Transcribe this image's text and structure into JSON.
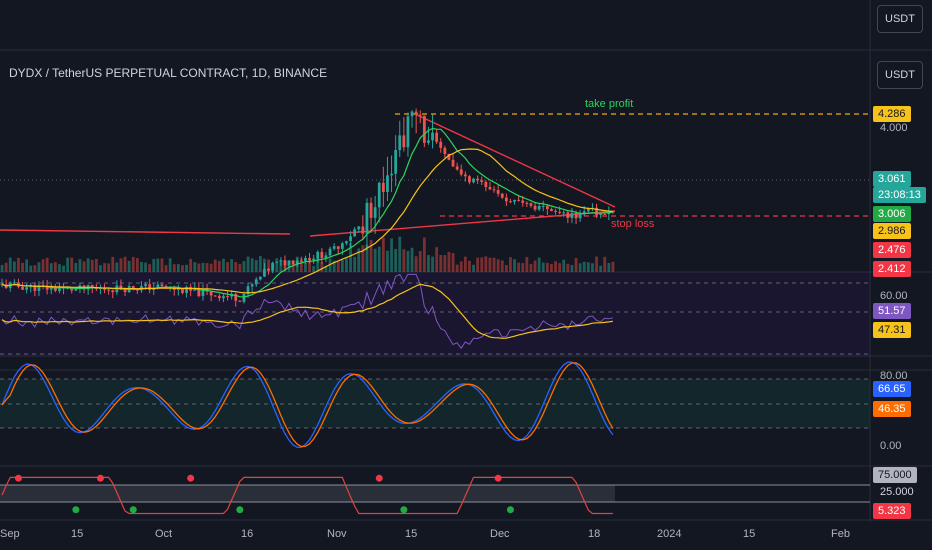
{
  "header": {
    "symbol_title": "DYDX / TetherUS PERPETUAL CONTRACT, 1D, BINANCE",
    "currency_button_top": "USDT",
    "currency_button_main": "USDT"
  },
  "annotations": {
    "take_profit": "take profit",
    "stop_loss": "stop loss"
  },
  "price_axis": {
    "tick_label": "4.000",
    "tags": {
      "take_profit_level": "4.286",
      "last_price": "3.061",
      "countdown": "23:08:13",
      "ma_fast": "3.006",
      "ma_slow": "2.986",
      "stop_loss_level": "2.476",
      "low_level": "2.412"
    }
  },
  "rsi_axis": {
    "tick_label": "60.00",
    "rsi_value": "51.57",
    "rsi_ma_value": "47.31"
  },
  "stoch_axis": {
    "tick_upper": "80.00",
    "tick_lower": "0.00",
    "k_value": "66.65",
    "d_value": "46.35"
  },
  "osc_axis": {
    "upper_level": "75.000",
    "lower_level": "25.000",
    "value": "5.323"
  },
  "time_axis": {
    "labels": [
      "Sep",
      "15",
      "Oct",
      "16",
      "Nov",
      "15",
      "Dec",
      "18",
      "2024",
      "15",
      "Feb"
    ]
  },
  "colors": {
    "background": "#131722",
    "up": "#26a69a",
    "down": "#ef5350",
    "ma_fast": "#2bd45a",
    "ma_slow": "#f7c21a",
    "trendline": "#f23645",
    "take_profit_line": "#f7a600",
    "rsi": "#7e57c2",
    "rsi_ma": "#f7c21a",
    "stoch_k": "#2962ff",
    "stoch_d": "#ff6d00"
  },
  "chart_data": {
    "type": "candlestick",
    "title": "DYDX / TetherUS PERPETUAL CONTRACT, 1D, BINANCE",
    "x_axis_labels": [
      "Sep",
      "15",
      "Oct",
      "16",
      "Nov",
      "15",
      "Dec",
      "18",
      "2024",
      "15",
      "Feb"
    ],
    "levels": {
      "take_profit": 4.286,
      "last": 3.061,
      "stop_loss": 2.476,
      "low": 2.412
    },
    "price_keypoints": [
      {
        "date": "Sep",
        "price": 2.2
      },
      {
        "date": "15",
        "price": 2.15
      },
      {
        "date": "Oct",
        "price": 2.18
      },
      {
        "date": "16",
        "price": 2.05
      },
      {
        "date": "Nov",
        "price": 2.6
      },
      {
        "date": "15",
        "price": 4.25
      },
      {
        "date": "Dec",
        "price": 3.15
      },
      {
        "date": "18",
        "price": 3.061
      }
    ],
    "indicators": {
      "rsi": {
        "value": 51.57,
        "ma": 47.31
      },
      "stochastic": {
        "k": 66.65,
        "d": 46.35
      },
      "oscillator": {
        "value": 5.323,
        "upper": 75.0,
        "lower": 25.0
      }
    }
  }
}
